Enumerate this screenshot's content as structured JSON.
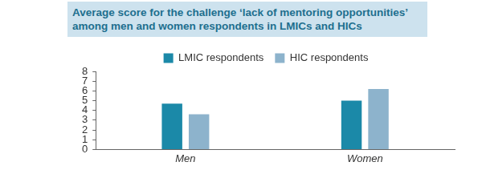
{
  "chart_data": {
    "type": "bar",
    "title": "Average score for the challenge ‘lack of mentoring opportunities’ among men and women respondents in LMICs and HICs",
    "categories": [
      "Men",
      "Women"
    ],
    "series": [
      {
        "name": "LMIC respondents",
        "color": "#1b89a8",
        "values": [
          4.7,
          5.0
        ]
      },
      {
        "name": "HIC respondents",
        "color": "#8db3cc",
        "values": [
          3.6,
          6.2
        ]
      }
    ],
    "ylim": [
      0,
      8
    ],
    "yticks": [
      0,
      1,
      2,
      3,
      4,
      5,
      6,
      7,
      8
    ],
    "grid": false,
    "legend": "top"
  }
}
